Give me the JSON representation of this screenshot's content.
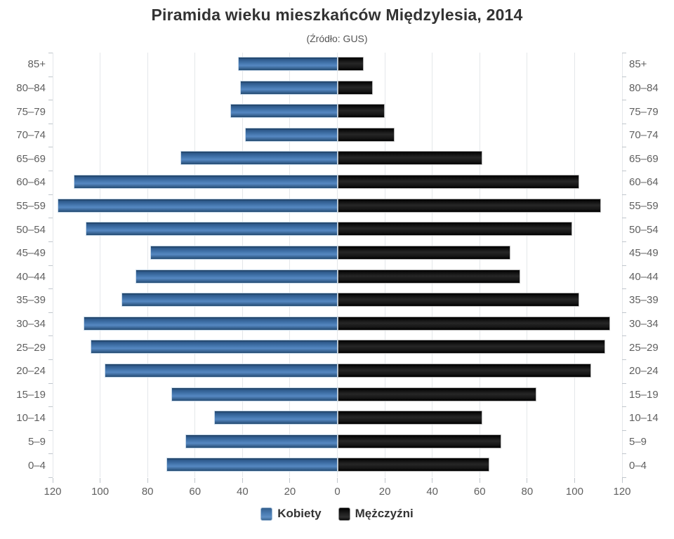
{
  "chart_data": {
    "type": "bar",
    "variant": "population-pyramid",
    "title": "Piramida wieku mieszkańców Międzylesia, 2014",
    "subtitle": "(Źródło: GUS)",
    "categories": [
      "85+",
      "80–84",
      "75–79",
      "70–74",
      "65–69",
      "60–64",
      "55–59",
      "50–54",
      "45–49",
      "40–44",
      "35–39",
      "30–34",
      "25–29",
      "20–24",
      "15–19",
      "10–14",
      "5–9",
      "0–4"
    ],
    "series": [
      {
        "name": "Kobiety",
        "side": "left",
        "color": "#4572A7",
        "values": [
          42,
          41,
          45,
          39,
          66,
          111,
          118,
          106,
          79,
          85,
          91,
          107,
          104,
          98,
          70,
          52,
          64,
          72
        ]
      },
      {
        "name": "Mężczyźni",
        "side": "right",
        "color": "#1A1A1A",
        "values": [
          11,
          15,
          20,
          24,
          61,
          102,
          111,
          99,
          73,
          77,
          102,
          115,
          113,
          107,
          84,
          61,
          69,
          64
        ]
      }
    ],
    "x_tick_labels": [
      "120",
      "100",
      "80",
      "60",
      "40",
      "20",
      "0",
      "20",
      "40",
      "60",
      "80",
      "100",
      "120"
    ],
    "x_max_per_side": 120,
    "grid": true,
    "gridline_color": "#e4e7ea",
    "axis_label_color": "#606060",
    "legend_position": "bottom"
  }
}
